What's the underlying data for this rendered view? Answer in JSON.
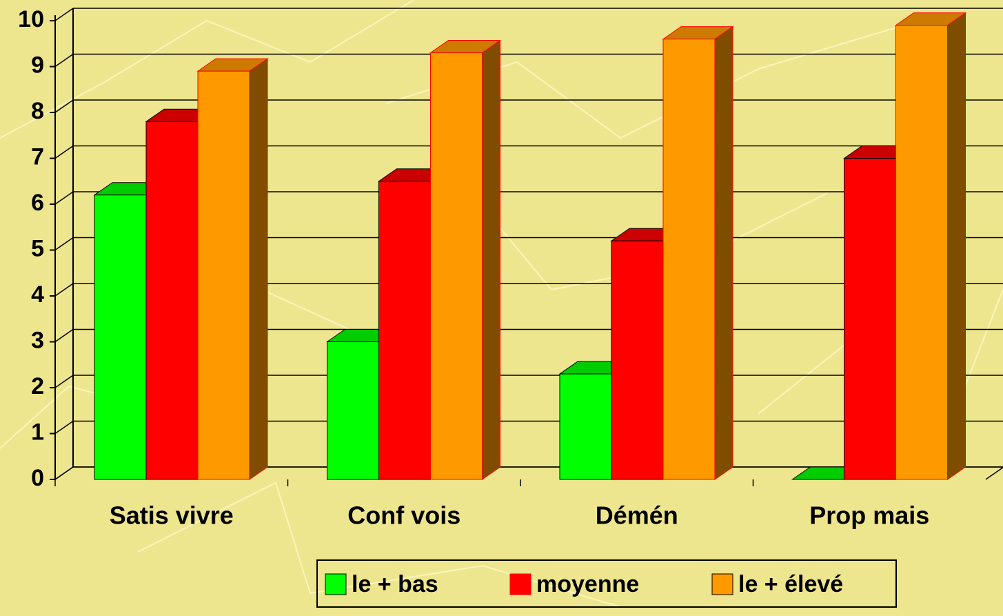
{
  "chart_data": {
    "type": "bar3d",
    "categories": [
      "Satis vivre",
      "Conf vois",
      "Démén",
      "Prop mais"
    ],
    "series": [
      {
        "name": "le + bas",
        "color": "#00ff00",
        "values": [
          6.2,
          3.0,
          2.3,
          0
        ]
      },
      {
        "name": "moyenne",
        "color": "#ff0000",
        "values": [
          7.8,
          6.5,
          5.2,
          7.0
        ]
      },
      {
        "name": "le + élevé",
        "color": "#ff9900",
        "values": [
          8.9,
          9.3,
          9.6,
          9.9
        ]
      }
    ],
    "ylim": [
      0,
      10
    ],
    "yticks": [
      0,
      1,
      2,
      3,
      4,
      5,
      6,
      7,
      8,
      9,
      10
    ],
    "grid": true,
    "legend": "bottom"
  }
}
